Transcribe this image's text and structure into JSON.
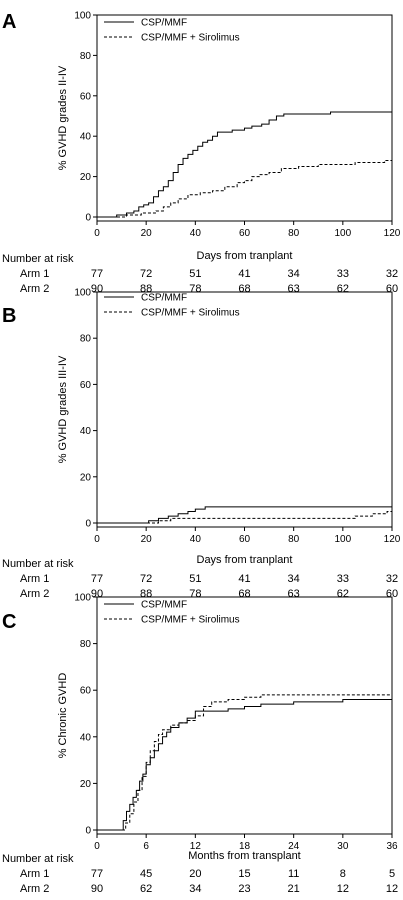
{
  "chart_data": [
    {
      "type": "line",
      "panel_label": "A",
      "ylabel": "% GVHD grades II-IV",
      "xlabel": "Days from tranplant",
      "xlim": [
        0,
        120
      ],
      "ylim": [
        0,
        100
      ],
      "xticks": [
        0,
        20,
        40,
        60,
        80,
        100,
        120
      ],
      "yticks": [
        0,
        20,
        40,
        60,
        80,
        100
      ],
      "legend": "top-left",
      "series": [
        {
          "name": "CSP/MMF",
          "style": "solid",
          "points": [
            [
              0,
              0
            ],
            [
              5,
              0
            ],
            [
              8,
              1
            ],
            [
              12,
              2
            ],
            [
              15,
              3
            ],
            [
              17,
              5
            ],
            [
              19,
              6
            ],
            [
              21,
              7
            ],
            [
              23,
              10
            ],
            [
              25,
              13
            ],
            [
              27,
              15
            ],
            [
              29,
              18
            ],
            [
              31,
              22
            ],
            [
              33,
              26
            ],
            [
              35,
              29
            ],
            [
              37,
              31
            ],
            [
              39,
              33
            ],
            [
              41,
              35
            ],
            [
              43,
              37
            ],
            [
              45,
              38
            ],
            [
              47,
              40
            ],
            [
              49,
              42
            ],
            [
              55,
              43
            ],
            [
              60,
              44
            ],
            [
              63,
              45
            ],
            [
              67,
              46
            ],
            [
              70,
              48
            ],
            [
              73,
              50
            ],
            [
              76,
              51
            ],
            [
              95,
              52
            ],
            [
              120,
              52
            ]
          ]
        },
        {
          "name": "CSP/MMF + Sirolimus",
          "style": "dashed",
          "points": [
            [
              0,
              0
            ],
            [
              10,
              0
            ],
            [
              12,
              1
            ],
            [
              18,
              2
            ],
            [
              24,
              3
            ],
            [
              27,
              5
            ],
            [
              30,
              7
            ],
            [
              33,
              9
            ],
            [
              37,
              11
            ],
            [
              42,
              12
            ],
            [
              47,
              13
            ],
            [
              52,
              15
            ],
            [
              57,
              17
            ],
            [
              60,
              18
            ],
            [
              63,
              20
            ],
            [
              66,
              21
            ],
            [
              70,
              22
            ],
            [
              75,
              24
            ],
            [
              82,
              25
            ],
            [
              90,
              26
            ],
            [
              100,
              26
            ],
            [
              105,
              27
            ],
            [
              110,
              27
            ],
            [
              117,
              28
            ],
            [
              120,
              28
            ]
          ]
        }
      ],
      "number_at_risk": {
        "header": "Number at risk",
        "rows": [
          {
            "label": "Arm 1",
            "values": [
              "77",
              "72",
              "51",
              "41",
              "34",
              "33",
              "32"
            ]
          },
          {
            "label": "Arm 2",
            "values": [
              "90",
              "88",
              "78",
              "68",
              "63",
              "62",
              "60"
            ]
          }
        ]
      }
    },
    {
      "type": "line",
      "panel_label": "B",
      "ylabel": "% GVHD grades III-IV",
      "xlabel": "Days from tranplant",
      "xlim": [
        0,
        120
      ],
      "ylim": [
        0,
        100
      ],
      "xticks": [
        0,
        20,
        40,
        60,
        80,
        100,
        120
      ],
      "yticks": [
        0,
        20,
        40,
        60,
        80,
        100
      ],
      "legend": "top-left",
      "series": [
        {
          "name": "CSP/MMF",
          "style": "solid",
          "points": [
            [
              0,
              0
            ],
            [
              18,
              0
            ],
            [
              21,
              1
            ],
            [
              25,
              2
            ],
            [
              29,
              3
            ],
            [
              33,
              4
            ],
            [
              37,
              5
            ],
            [
              40,
              6
            ],
            [
              44,
              7
            ],
            [
              80,
              7
            ],
            [
              100,
              7
            ],
            [
              120,
              7
            ]
          ]
        },
        {
          "name": "CSP/MMF + Sirolimus",
          "style": "dashed",
          "points": [
            [
              0,
              0
            ],
            [
              20,
              0
            ],
            [
              25,
              1
            ],
            [
              30,
              2
            ],
            [
              38,
              2
            ],
            [
              50,
              2
            ],
            [
              95,
              2
            ],
            [
              105,
              3
            ],
            [
              112,
              4
            ],
            [
              118,
              5
            ],
            [
              120,
              5
            ]
          ]
        }
      ],
      "number_at_risk": {
        "header": "Number at risk",
        "rows": [
          {
            "label": "Arm 1",
            "values": [
              "77",
              "72",
              "51",
              "41",
              "34",
              "33",
              "32"
            ]
          },
          {
            "label": "Arm 2",
            "values": [
              "90",
              "88",
              "78",
              "68",
              "63",
              "62",
              "60"
            ]
          }
        ]
      }
    },
    {
      "type": "line",
      "panel_label": "C",
      "ylabel": "% Chronic GVHD",
      "xlabel": "Months from transplant",
      "xlim": [
        0,
        36
      ],
      "ylim": [
        0,
        100
      ],
      "xticks": [
        0,
        6,
        12,
        18,
        24,
        30,
        36
      ],
      "yticks": [
        0,
        20,
        40,
        60,
        80,
        100
      ],
      "legend": "top-left",
      "series": [
        {
          "name": "CSP/MMF",
          "style": "solid",
          "points": [
            [
              0,
              0
            ],
            [
              2.8,
              0
            ],
            [
              3.2,
              4
            ],
            [
              3.6,
              8
            ],
            [
              4.0,
              11
            ],
            [
              4.4,
              14
            ],
            [
              4.8,
              17
            ],
            [
              5.2,
              21
            ],
            [
              5.6,
              24
            ],
            [
              6.0,
              28
            ],
            [
              6.5,
              31
            ],
            [
              7.0,
              34
            ],
            [
              7.5,
              37
            ],
            [
              8.0,
              40
            ],
            [
              8.5,
              42
            ],
            [
              9.0,
              44
            ],
            [
              10.0,
              46
            ],
            [
              11.0,
              48
            ],
            [
              12.0,
              51
            ],
            [
              14,
              51
            ],
            [
              16,
              52
            ],
            [
              18,
              53
            ],
            [
              20,
              54
            ],
            [
              24,
              55
            ],
            [
              30,
              56
            ],
            [
              36,
              56
            ]
          ]
        },
        {
          "name": "CSP/MMF + Sirolimus",
          "style": "dashed",
          "points": [
            [
              0,
              0
            ],
            [
              3.0,
              0
            ],
            [
              3.5,
              3
            ],
            [
              4.0,
              7
            ],
            [
              4.5,
              12
            ],
            [
              5.0,
              17
            ],
            [
              5.5,
              23
            ],
            [
              6.0,
              29
            ],
            [
              6.5,
              34
            ],
            [
              7.0,
              38
            ],
            [
              7.5,
              41
            ],
            [
              8.0,
              43
            ],
            [
              9.0,
              45
            ],
            [
              10.0,
              46
            ],
            [
              11.0,
              47
            ],
            [
              12.0,
              49
            ],
            [
              13.0,
              53
            ],
            [
              14.0,
              55
            ],
            [
              16.0,
              56
            ],
            [
              18.0,
              57
            ],
            [
              20.0,
              58
            ],
            [
              36.0,
              58
            ]
          ]
        }
      ],
      "number_at_risk": {
        "header": "Number at risk",
        "rows": [
          {
            "label": "Arm 1",
            "values": [
              "77",
              "45",
              "20",
              "15",
              "11",
              "8",
              "5"
            ]
          },
          {
            "label": "Arm 2",
            "values": [
              "90",
              "62",
              "34",
              "23",
              "21",
              "12",
              "12"
            ]
          }
        ]
      }
    }
  ]
}
